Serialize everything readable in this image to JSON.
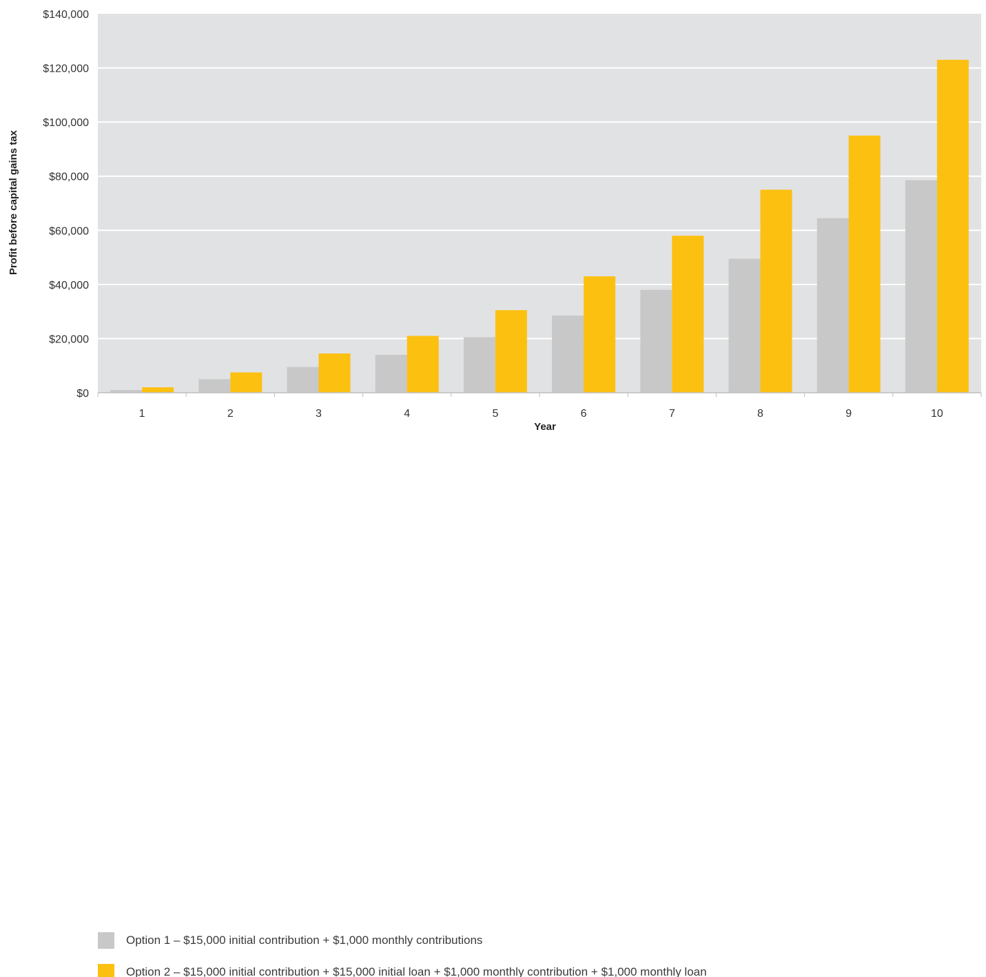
{
  "chart_data": {
    "type": "bar",
    "title": "",
    "xlabel": "Year",
    "ylabel": "Profit before capital gains tax",
    "categories": [
      "1",
      "2",
      "3",
      "4",
      "5",
      "6",
      "7",
      "8",
      "9",
      "10"
    ],
    "ylim": [
      0,
      140000
    ],
    "yticks": [
      0,
      20000,
      40000,
      60000,
      80000,
      100000,
      120000,
      140000
    ],
    "ytick_labels": [
      "$0",
      "$20,000",
      "$40,000",
      "$60,000",
      "$80,000",
      "$100,000",
      "$120,000",
      "$140,000"
    ],
    "grid": true,
    "legend_position": "bottom-left",
    "series": [
      {
        "name": "Option 1 – $15,000 initial contribution + $1,000 monthly contributions",
        "color": "#c8c8c8",
        "values": [
          1000,
          5000,
          9500,
          14000,
          20500,
          28500,
          38000,
          49500,
          64500,
          78500
        ]
      },
      {
        "name": "Option 2 – $15,000 initial contribution + $15,000 initial loan + $1,000 monthly contribution + $1,000 monthly loan",
        "color": "#fcc010",
        "values": [
          2000,
          7500,
          14500,
          21000,
          30500,
          43000,
          58000,
          75000,
          95000,
          123000
        ]
      }
    ],
    "plot_background": "#e1e2e4",
    "grid_color": "#ffffff"
  }
}
